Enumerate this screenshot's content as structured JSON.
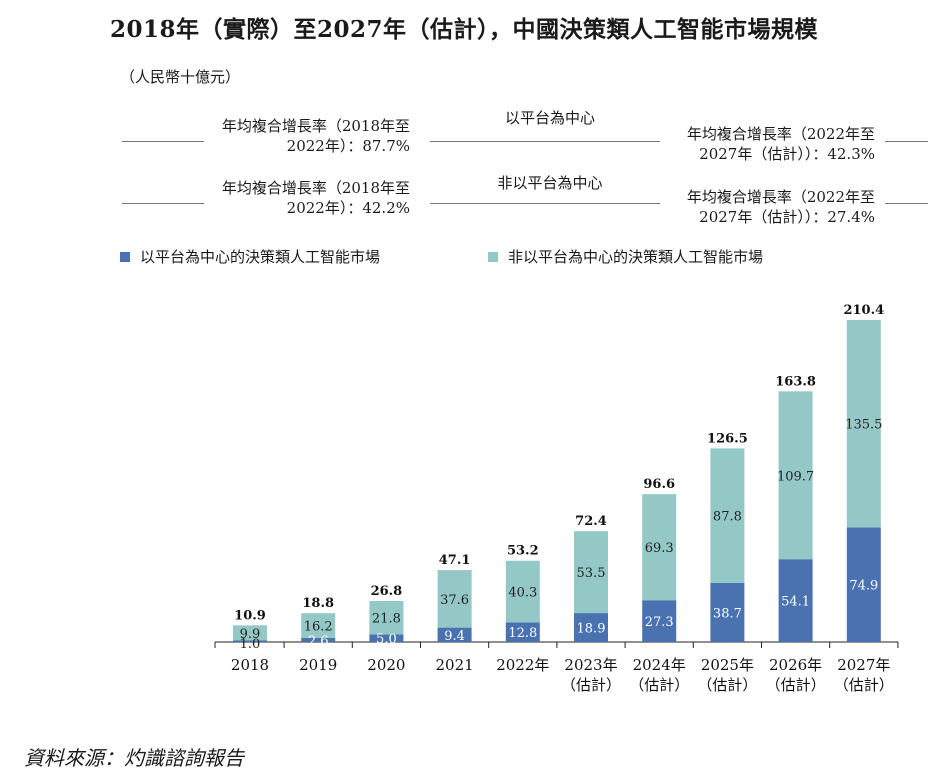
{
  "title": "2018年（實際）至2027年（估計），中國決策類人工智能市場規模",
  "unit": "（人民幣十億元）",
  "cagr": {
    "platform_label": "以平台為中心",
    "nonplatform_label": "非以平台為中心",
    "platform_hist": [
      "年均複合增長率（2018年至",
      "2022年）：87.7%"
    ],
    "platform_fcst": [
      "年均複合增長率（2022年至",
      "2027年（估計））：42.3%"
    ],
    "nonplatform_hist": [
      "年均複合增長率（2018年至",
      "2022年）：42.2%"
    ],
    "nonplatform_fcst": [
      "年均複合增長率（2022年至",
      "2027年（估計））：27.4%"
    ]
  },
  "legend": {
    "platform": "以平台為中心的決策類人工智能市場",
    "nonplatform": "非以平台為中心的決策類人工智能市場"
  },
  "colors": {
    "platform": "#4a72b0",
    "nonplatform": "#93c8c6"
  },
  "chart_data": {
    "type": "bar",
    "stacked": true,
    "categories": [
      [
        "2018"
      ],
      [
        "2019"
      ],
      [
        "2020"
      ],
      [
        "2021"
      ],
      [
        "2022年"
      ],
      [
        "2023年",
        "（估計）"
      ],
      [
        "2024年",
        "（估計）"
      ],
      [
        "2025年",
        "（估計）"
      ],
      [
        "2026年",
        "（估計）"
      ],
      [
        "2027年",
        "（估計）"
      ]
    ],
    "series": [
      {
        "name": "以平台為中心的決策類人工智能市場",
        "values": [
          1.0,
          2.6,
          5.0,
          9.4,
          12.8,
          18.9,
          27.3,
          38.7,
          54.1,
          74.9
        ]
      },
      {
        "name": "非以平台為中心的決策類人工智能市場",
        "values": [
          9.9,
          16.2,
          21.8,
          37.6,
          40.3,
          53.5,
          69.3,
          87.8,
          109.7,
          135.5
        ]
      }
    ],
    "totals": [
      10.9,
      18.8,
      26.8,
      47.1,
      53.2,
      72.4,
      96.6,
      126.5,
      163.8,
      210.4
    ],
    "ylim": [
      0,
      210.4
    ]
  },
  "source": "資料來源：灼識諮詢報告"
}
